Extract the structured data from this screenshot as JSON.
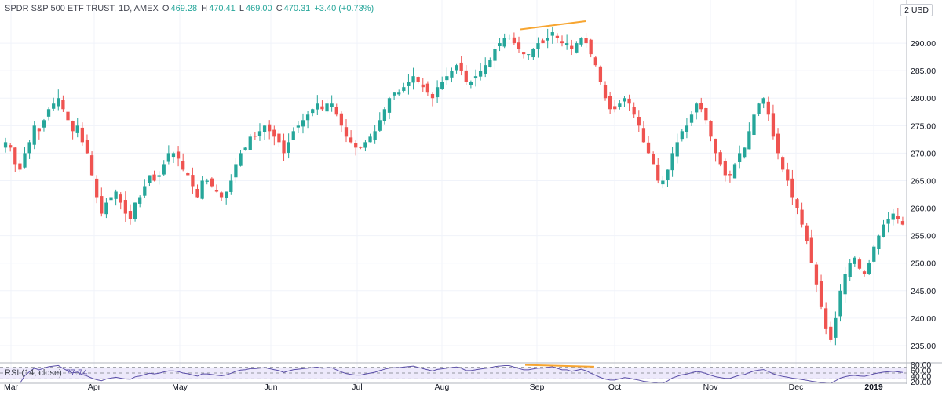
{
  "header": {
    "symbol": "SPDR S&P 500 ETF TRUST, 1D, AMEX",
    "open_label": "O",
    "open": "469.28",
    "high_label": "H",
    "high": "470.41",
    "low_label": "L",
    "low": "469.00",
    "close_label": "C",
    "close": "470.31",
    "change": "+3.40 (+0.73%)"
  },
  "currency": "2 USD",
  "rsi_header": {
    "label": "RSI (14, close)",
    "value": "77.74"
  },
  "colors": {
    "up": "#26a69a",
    "down": "#ef5350",
    "rsi_line": "#5b4fa8",
    "divergence": "#f7a530",
    "rsi_band": "#ede9fb"
  },
  "chart_data": [
    {
      "type": "candlestick",
      "title": "SPDR S&P 500 ETF TRUST, 1D, AMEX",
      "x_ticks": [
        "Mar",
        "Apr",
        "May",
        "Jun",
        "Jul",
        "Aug",
        "Sep",
        "Oct",
        "Nov",
        "Dec",
        "2019"
      ],
      "y_ticks": [
        "235.00",
        "240.00",
        "245.00",
        "250.00",
        "255.00",
        "260.00",
        "265.00",
        "270.00",
        "275.00",
        "280.00",
        "285.00",
        "290.00"
      ],
      "ylim": [
        232,
        295
      ],
      "grid": true,
      "closes": [
        272,
        271,
        268,
        267,
        270,
        272,
        275,
        274,
        276,
        278,
        279,
        280,
        278,
        276,
        274,
        275,
        272,
        270,
        266,
        262,
        259,
        261,
        262,
        263,
        261,
        259,
        258,
        261,
        262,
        264,
        266,
        265,
        266,
        268,
        270,
        270,
        269,
        267,
        266,
        264,
        262,
        265,
        265,
        264,
        263,
        262,
        263,
        265,
        268,
        270,
        271,
        273,
        273,
        274,
        275,
        274,
        273,
        272,
        270,
        272,
        274,
        275,
        276,
        277,
        278,
        279,
        278,
        279,
        279,
        277,
        275,
        273,
        272,
        271,
        271,
        272,
        273,
        274,
        276,
        278,
        280,
        281,
        281,
        282,
        283,
        284,
        283,
        282,
        281,
        280,
        282,
        283,
        284,
        285,
        286,
        285,
        283,
        283,
        284,
        285,
        286,
        287,
        289,
        290,
        291,
        291,
        290,
        289,
        288,
        288,
        289,
        290,
        290,
        291,
        292,
        291,
        290,
        290,
        289,
        290,
        291,
        290,
        288,
        286,
        283,
        280,
        278,
        278,
        279,
        280,
        279,
        277,
        275,
        272,
        270,
        268,
        265,
        265,
        267,
        270,
        272,
        274,
        275,
        277,
        279,
        278,
        276,
        273,
        270,
        268,
        266,
        266,
        268,
        270,
        271,
        274,
        277,
        279,
        280,
        277,
        273,
        270,
        267,
        265,
        262,
        260,
        257,
        254,
        250,
        246,
        242,
        238,
        236,
        240,
        245,
        248,
        250,
        251,
        249,
        248,
        250,
        253,
        255,
        257,
        258,
        259,
        258,
        257
      ]
    },
    {
      "type": "line",
      "title": "RSI (14, close)",
      "y_ticks": [
        "20.00",
        "40.00",
        "60.00",
        "80.00"
      ],
      "ylim": [
        15,
        85
      ],
      "bands": [
        30,
        50,
        70
      ]
    }
  ]
}
